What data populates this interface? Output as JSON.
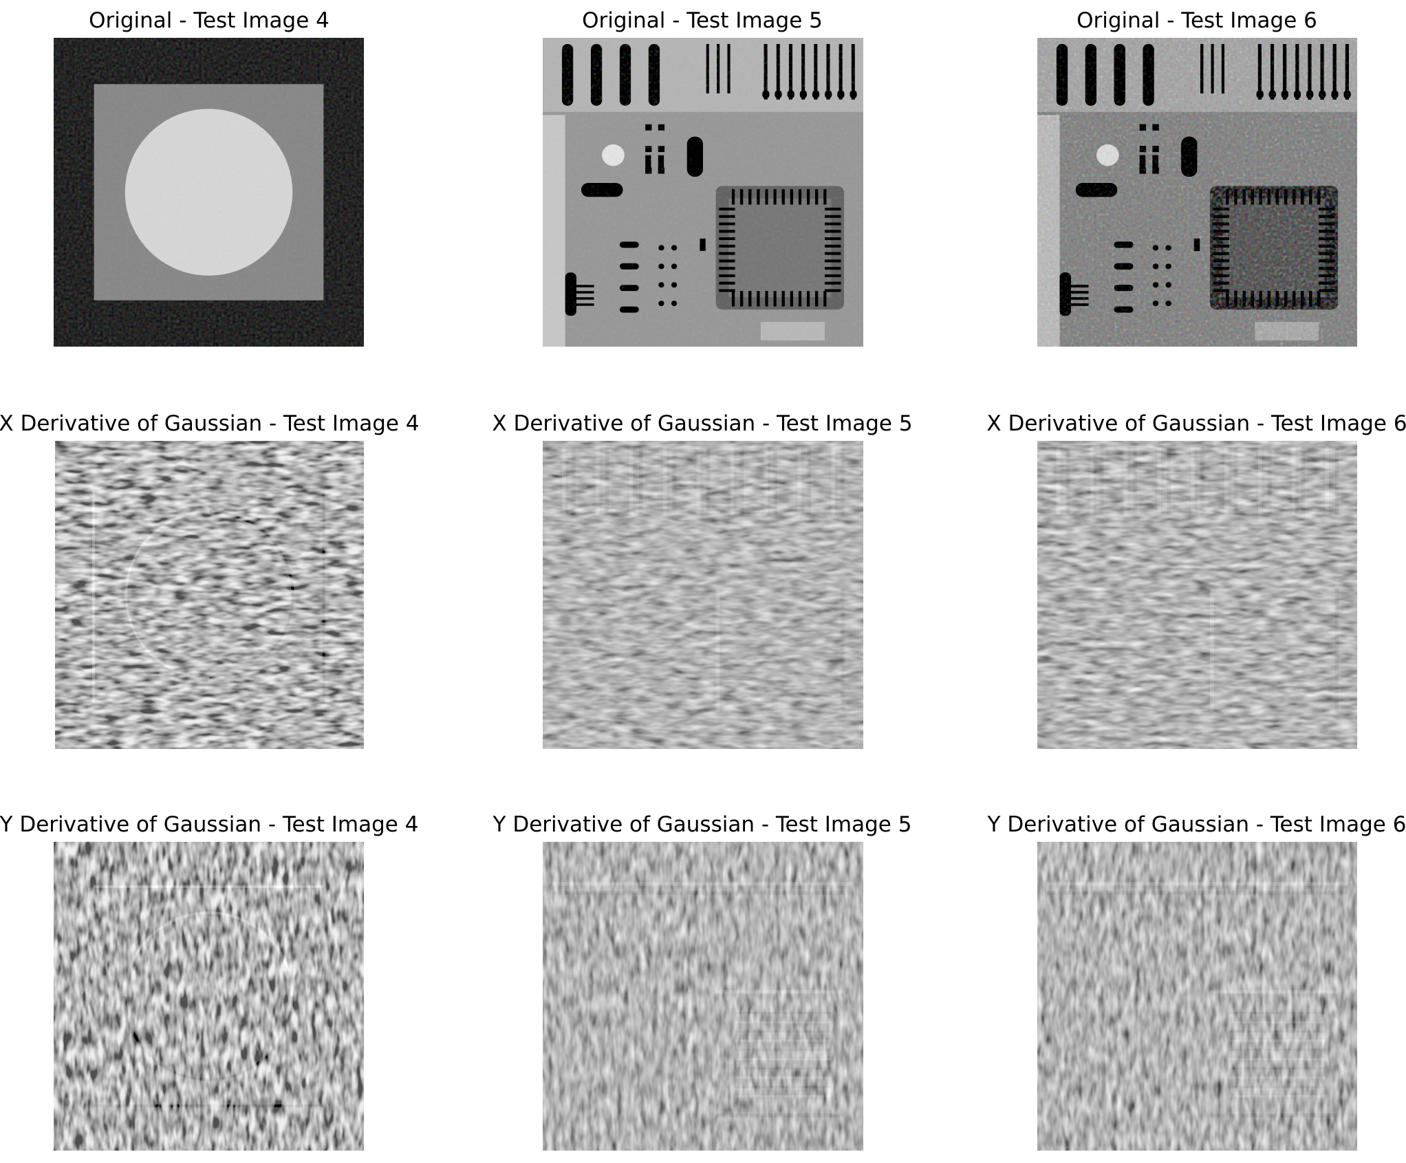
{
  "figure": {
    "panels": [
      {
        "id": "orig4",
        "title": "Original - Test Image 4",
        "kind": "original",
        "scene": "square-circle",
        "noise": "light"
      },
      {
        "id": "orig5",
        "title": "Original - Test Image 5",
        "kind": "original",
        "scene": "circuit",
        "noise": "light"
      },
      {
        "id": "orig6",
        "title": "Original - Test Image 6",
        "kind": "original",
        "scene": "circuit",
        "noise": "heavy"
      },
      {
        "id": "dx4",
        "title": "X Derivative of Gaussian - Test Image 4",
        "kind": "x-derivative",
        "scene": "square-circle",
        "noise": "heavy"
      },
      {
        "id": "dx5",
        "title": "X Derivative of Gaussian - Test Image 5",
        "kind": "x-derivative",
        "scene": "circuit",
        "noise": "medium"
      },
      {
        "id": "dx6",
        "title": "X Derivative of Gaussian - Test Image 6",
        "kind": "x-derivative",
        "scene": "circuit",
        "noise": "medium"
      },
      {
        "id": "dy4",
        "title": "Y Derivative of Gaussian - Test Image 4",
        "kind": "y-derivative",
        "scene": "square-circle",
        "noise": "heavy"
      },
      {
        "id": "dy5",
        "title": "Y Derivative of Gaussian - Test Image 5",
        "kind": "y-derivative",
        "scene": "circuit",
        "noise": "medium"
      },
      {
        "id": "dy6",
        "title": "Y Derivative of Gaussian - Test Image 6",
        "kind": "y-derivative",
        "scene": "circuit",
        "noise": "medium"
      }
    ]
  }
}
